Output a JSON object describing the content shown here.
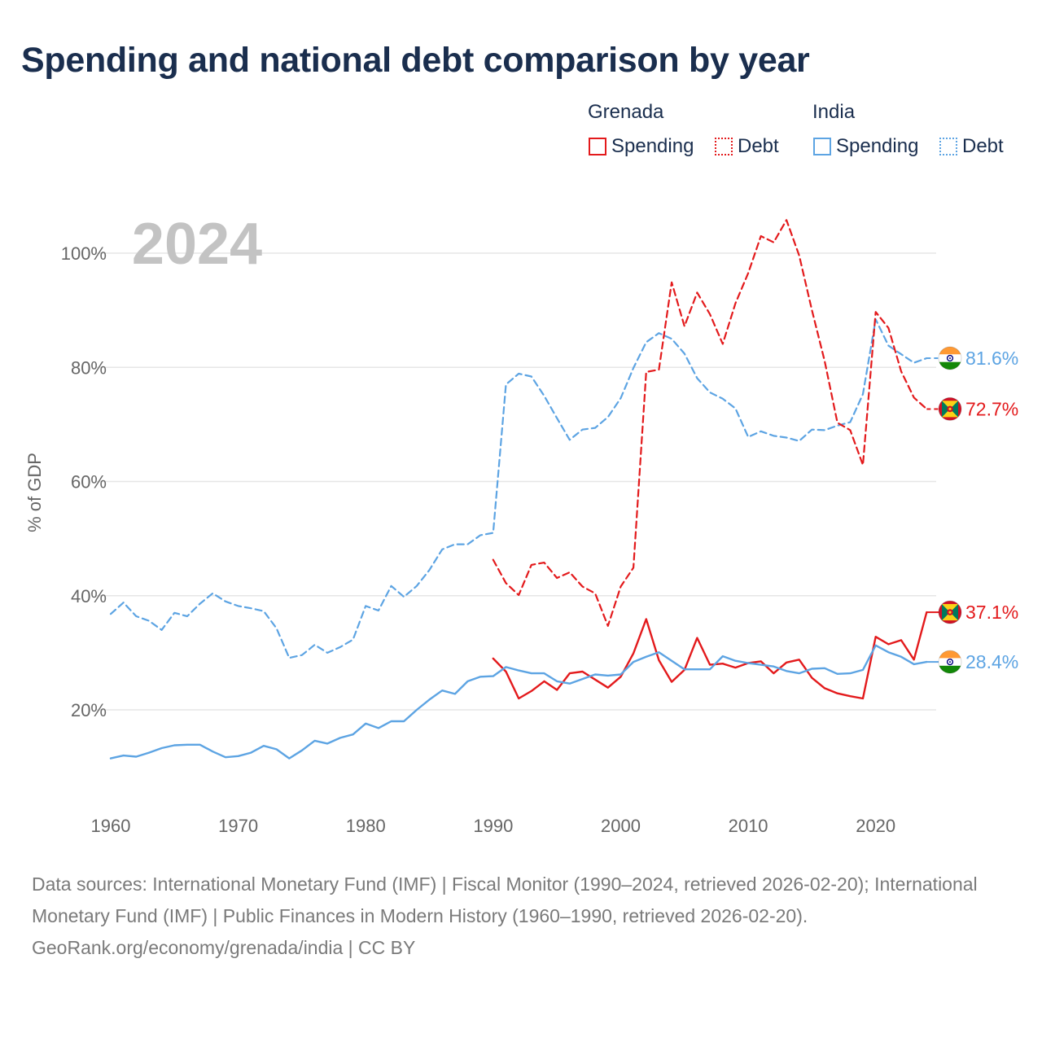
{
  "title": "Spending and national debt comparison by year",
  "legend": {
    "groups": [
      {
        "name": "Grenada",
        "items": [
          {
            "label": "Spending",
            "color": "#e31a1c",
            "style": "solid"
          },
          {
            "label": "Debt",
            "color": "#e31a1c",
            "style": "dotted"
          }
        ]
      },
      {
        "name": "India",
        "items": [
          {
            "label": "Spending",
            "color": "#5da4e3",
            "style": "solid"
          },
          {
            "label": "Debt",
            "color": "#5da4e3",
            "style": "dotted"
          }
        ]
      }
    ]
  },
  "footer": {
    "sources": "Data sources: International Monetary Fund (IMF) | Fiscal Monitor (1990–2024, retrieved 2026-02-20); International Monetary Fund (IMF) | Public Finances in Modern History (1960–1990, retrieved 2026-02-20).",
    "credit": "GeoRank.org/economy/grenada/india | CC BY"
  },
  "chart_data": {
    "type": "line",
    "year_label": "2024",
    "ylabel": "% of GDP",
    "xlabel": "",
    "xlim": [
      1960,
      2025
    ],
    "ylim": [
      9,
      107
    ],
    "x_ticks": [
      1960,
      1970,
      1980,
      1990,
      2000,
      2010,
      2020
    ],
    "y_ticks": [
      20,
      40,
      60,
      80,
      100
    ],
    "y_tick_labels": [
      "20%",
      "40%",
      "60%",
      "80%",
      "100%"
    ],
    "grid": true,
    "series": [
      {
        "name": "India Debt",
        "country": "India",
        "metric": "Debt",
        "color": "#5da4e3",
        "dashed": true,
        "end_label": "81.6%",
        "points": [
          [
            1960,
            36.8
          ],
          [
            1961,
            38.8
          ],
          [
            1962,
            36.4
          ],
          [
            1963,
            35.6
          ],
          [
            1964,
            34.0
          ],
          [
            1965,
            37.0
          ],
          [
            1966,
            36.4
          ],
          [
            1967,
            38.6
          ],
          [
            1968,
            40.4
          ],
          [
            1969,
            39.0
          ],
          [
            1970,
            38.2
          ],
          [
            1971,
            37.8
          ],
          [
            1972,
            37.3
          ],
          [
            1973,
            34.3
          ],
          [
            1974,
            29.1
          ],
          [
            1975,
            29.6
          ],
          [
            1976,
            31.4
          ],
          [
            1977,
            30.0
          ],
          [
            1978,
            31.0
          ],
          [
            1979,
            32.3
          ],
          [
            1980,
            38.2
          ],
          [
            1981,
            37.4
          ],
          [
            1982,
            41.7
          ],
          [
            1983,
            39.8
          ],
          [
            1984,
            41.7
          ],
          [
            1985,
            44.5
          ],
          [
            1986,
            48.1
          ],
          [
            1987,
            49.0
          ],
          [
            1988,
            49.0
          ],
          [
            1989,
            50.6
          ],
          [
            1990,
            51.0
          ],
          [
            1991,
            77.0
          ],
          [
            1992,
            78.9
          ],
          [
            1993,
            78.4
          ],
          [
            1994,
            75.0
          ],
          [
            1995,
            71.1
          ],
          [
            1996,
            67.3
          ],
          [
            1997,
            69.1
          ],
          [
            1998,
            69.4
          ],
          [
            1999,
            71.3
          ],
          [
            2000,
            74.6
          ],
          [
            2001,
            79.9
          ],
          [
            2002,
            84.4
          ],
          [
            2003,
            86.0
          ],
          [
            2004,
            85.0
          ],
          [
            2005,
            82.4
          ],
          [
            2006,
            78.1
          ],
          [
            2007,
            75.6
          ],
          [
            2008,
            74.5
          ],
          [
            2009,
            72.8
          ],
          [
            2010,
            67.8
          ],
          [
            2011,
            68.8
          ],
          [
            2012,
            68.0
          ],
          [
            2013,
            67.7
          ],
          [
            2014,
            67.1
          ],
          [
            2015,
            69.1
          ],
          [
            2016,
            69.0
          ],
          [
            2017,
            69.8
          ],
          [
            2018,
            70.4
          ],
          [
            2019,
            75.3
          ],
          [
            2020,
            88.4
          ],
          [
            2021,
            83.8
          ],
          [
            2022,
            82.3
          ],
          [
            2023,
            80.8
          ],
          [
            2024,
            81.6
          ]
        ]
      },
      {
        "name": "Grenada Debt",
        "country": "Grenada",
        "metric": "Debt",
        "color": "#e31a1c",
        "dashed": true,
        "end_label": "72.7%",
        "points": [
          [
            1990,
            46.3
          ],
          [
            1991,
            42.2
          ],
          [
            1992,
            40.1
          ],
          [
            1993,
            45.4
          ],
          [
            1994,
            45.8
          ],
          [
            1995,
            43.1
          ],
          [
            1996,
            44.1
          ],
          [
            1997,
            41.6
          ],
          [
            1998,
            40.4
          ],
          [
            1999,
            34.7
          ],
          [
            2000,
            41.6
          ],
          [
            2001,
            44.9
          ],
          [
            2002,
            79.2
          ],
          [
            2003,
            79.6
          ],
          [
            2004,
            94.9
          ],
          [
            2005,
            87.2
          ],
          [
            2006,
            93.1
          ],
          [
            2007,
            89.3
          ],
          [
            2008,
            84.1
          ],
          [
            2009,
            91.2
          ],
          [
            2010,
            96.5
          ],
          [
            2011,
            103.0
          ],
          [
            2012,
            101.9
          ],
          [
            2013,
            105.8
          ],
          [
            2014,
            99.6
          ],
          [
            2015,
            90.0
          ],
          [
            2016,
            81.1
          ],
          [
            2017,
            70.3
          ],
          [
            2018,
            69.0
          ],
          [
            2019,
            62.9
          ],
          [
            2020,
            89.7
          ],
          [
            2021,
            86.9
          ],
          [
            2022,
            79.3
          ],
          [
            2023,
            74.7
          ],
          [
            2024,
            72.7
          ]
        ]
      },
      {
        "name": "Grenada Spending",
        "country": "Grenada",
        "metric": "Spending",
        "color": "#e31a1c",
        "dashed": false,
        "end_label": "37.1%",
        "points": [
          [
            1990,
            29.0
          ],
          [
            1991,
            26.7
          ],
          [
            1992,
            22.0
          ],
          [
            1993,
            23.3
          ],
          [
            1994,
            25.0
          ],
          [
            1995,
            23.5
          ],
          [
            1996,
            26.4
          ],
          [
            1997,
            26.7
          ],
          [
            1998,
            25.3
          ],
          [
            1999,
            23.9
          ],
          [
            2000,
            25.8
          ],
          [
            2001,
            29.9
          ],
          [
            2002,
            35.9
          ],
          [
            2003,
            28.7
          ],
          [
            2004,
            24.9
          ],
          [
            2005,
            27.0
          ],
          [
            2006,
            32.6
          ],
          [
            2007,
            27.9
          ],
          [
            2008,
            28.1
          ],
          [
            2009,
            27.4
          ],
          [
            2010,
            28.2
          ],
          [
            2011,
            28.5
          ],
          [
            2012,
            26.4
          ],
          [
            2013,
            28.3
          ],
          [
            2014,
            28.8
          ],
          [
            2015,
            25.6
          ],
          [
            2016,
            23.8
          ],
          [
            2017,
            22.9
          ],
          [
            2018,
            22.4
          ],
          [
            2019,
            22.0
          ],
          [
            2020,
            32.8
          ],
          [
            2021,
            31.5
          ],
          [
            2022,
            32.2
          ],
          [
            2023,
            28.8
          ],
          [
            2024,
            37.1
          ]
        ]
      },
      {
        "name": "India Spending",
        "country": "India",
        "metric": "Spending",
        "color": "#5da4e3",
        "dashed": false,
        "end_label": "28.4%",
        "points": [
          [
            1960,
            11.5
          ],
          [
            1961,
            12.0
          ],
          [
            1962,
            11.8
          ],
          [
            1963,
            12.5
          ],
          [
            1964,
            13.3
          ],
          [
            1965,
            13.8
          ],
          [
            1966,
            13.9
          ],
          [
            1967,
            13.9
          ],
          [
            1968,
            12.7
          ],
          [
            1969,
            11.7
          ],
          [
            1970,
            11.9
          ],
          [
            1971,
            12.5
          ],
          [
            1972,
            13.7
          ],
          [
            1973,
            13.1
          ],
          [
            1974,
            11.5
          ],
          [
            1975,
            12.9
          ],
          [
            1976,
            14.6
          ],
          [
            1977,
            14.1
          ],
          [
            1978,
            15.1
          ],
          [
            1979,
            15.7
          ],
          [
            1980,
            17.6
          ],
          [
            1981,
            16.8
          ],
          [
            1982,
            18.0
          ],
          [
            1983,
            18.0
          ],
          [
            1984,
            20.0
          ],
          [
            1985,
            21.8
          ],
          [
            1986,
            23.4
          ],
          [
            1987,
            22.8
          ],
          [
            1988,
            25.0
          ],
          [
            1989,
            25.8
          ],
          [
            1990,
            25.9
          ],
          [
            1991,
            27.5
          ],
          [
            1992,
            26.9
          ],
          [
            1993,
            26.4
          ],
          [
            1994,
            26.4
          ],
          [
            1995,
            25.0
          ],
          [
            1996,
            24.6
          ],
          [
            1997,
            25.4
          ],
          [
            1998,
            26.2
          ],
          [
            1999,
            26.0
          ],
          [
            2000,
            26.2
          ],
          [
            2001,
            28.4
          ],
          [
            2002,
            29.3
          ],
          [
            2003,
            30.1
          ],
          [
            2004,
            28.6
          ],
          [
            2005,
            27.1
          ],
          [
            2006,
            27.1
          ],
          [
            2007,
            27.1
          ],
          [
            2008,
            29.4
          ],
          [
            2009,
            28.6
          ],
          [
            2010,
            28.2
          ],
          [
            2011,
            27.9
          ],
          [
            2012,
            27.6
          ],
          [
            2013,
            26.8
          ],
          [
            2014,
            26.4
          ],
          [
            2015,
            27.2
          ],
          [
            2016,
            27.3
          ],
          [
            2017,
            26.3
          ],
          [
            2018,
            26.4
          ],
          [
            2019,
            27.0
          ],
          [
            2020,
            31.3
          ],
          [
            2021,
            30.1
          ],
          [
            2022,
            29.3
          ],
          [
            2023,
            28.0
          ],
          [
            2024,
            28.4
          ]
        ]
      }
    ]
  }
}
